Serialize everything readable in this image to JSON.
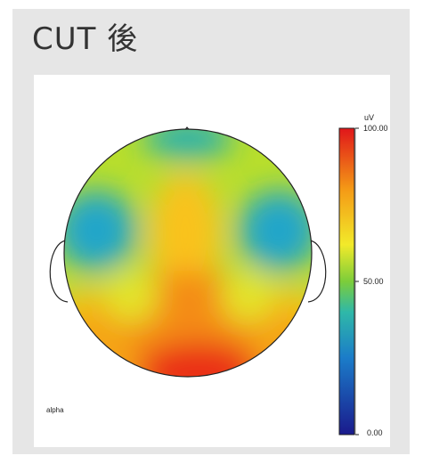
{
  "title": "CUT 後",
  "band_label": "alpha",
  "colorbar": {
    "unit": "uV",
    "ticks": {
      "max": "100.00",
      "mid": "50.00",
      "min": "0.00"
    }
  }
}
